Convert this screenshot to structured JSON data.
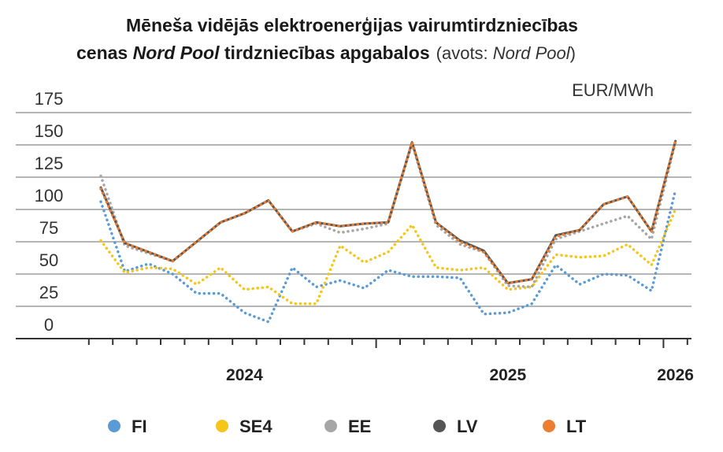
{
  "chart_data": {
    "type": "line",
    "title": [
      "Mēneša vidējās elektroenerģijas vairumtirdzniecības",
      "cenas ",
      "Nord Pool",
      " tirdzniecības apgabalos"
    ],
    "subtitle": [
      "(avots: ",
      "Nord Pool",
      ")"
    ],
    "y_unit": "EUR/MWh",
    "categories": [
      null,
      null,
      null,
      null,
      null,
      null,
      "2024",
      null,
      null,
      null,
      null,
      null,
      null,
      null,
      null,
      null,
      null,
      "2025",
      null,
      null,
      null,
      null,
      null,
      null,
      "2026"
    ],
    "ylim": [
      0,
      175
    ],
    "yticks": [
      0,
      25,
      50,
      75,
      100,
      125,
      150,
      175
    ],
    "grid": true,
    "legend": "bottom",
    "series": [
      {
        "name": "FI",
        "color": "#5b9bd5",
        "style": "dotted",
        "values": [
          106,
          52,
          58,
          50,
          35,
          35,
          20,
          13,
          55,
          40,
          45,
          39,
          53,
          48,
          48,
          47,
          19,
          20,
          27,
          57,
          42,
          50,
          49,
          37,
          115
        ]
      },
      {
        "name": "SE4",
        "color": "#f5c518",
        "style": "dotted",
        "values": [
          76,
          51,
          55,
          54,
          42,
          55,
          38,
          40,
          27,
          27,
          72,
          59,
          67,
          88,
          55,
          53,
          55,
          38,
          40,
          65,
          63,
          64,
          73,
          57,
          100
        ]
      },
      {
        "name": "EE",
        "color": "#a6a6a6",
        "style": "dotted",
        "values": [
          126,
          72,
          66,
          60,
          75,
          90,
          97,
          107,
          83,
          89,
          82,
          85,
          89,
          151,
          88,
          73,
          67,
          41,
          40,
          77,
          83,
          89,
          95,
          77,
          152
        ]
      },
      {
        "name": "LV",
        "color": "#555555",
        "style": "solid",
        "values": [
          117,
          74,
          67,
          60,
          75,
          90,
          97,
          107,
          83,
          90,
          87,
          89,
          90,
          152,
          90,
          76,
          68,
          43,
          46,
          80,
          84,
          104,
          110,
          83,
          153
        ]
      },
      {
        "name": "LT",
        "color": "#ed7d31",
        "style": "dotted",
        "values": [
          116,
          74,
          67,
          60,
          75,
          90,
          97,
          107,
          83,
          90,
          87,
          89,
          90,
          152,
          90,
          75,
          67,
          43,
          46,
          79,
          84,
          104,
          110,
          83,
          153
        ]
      }
    ]
  }
}
